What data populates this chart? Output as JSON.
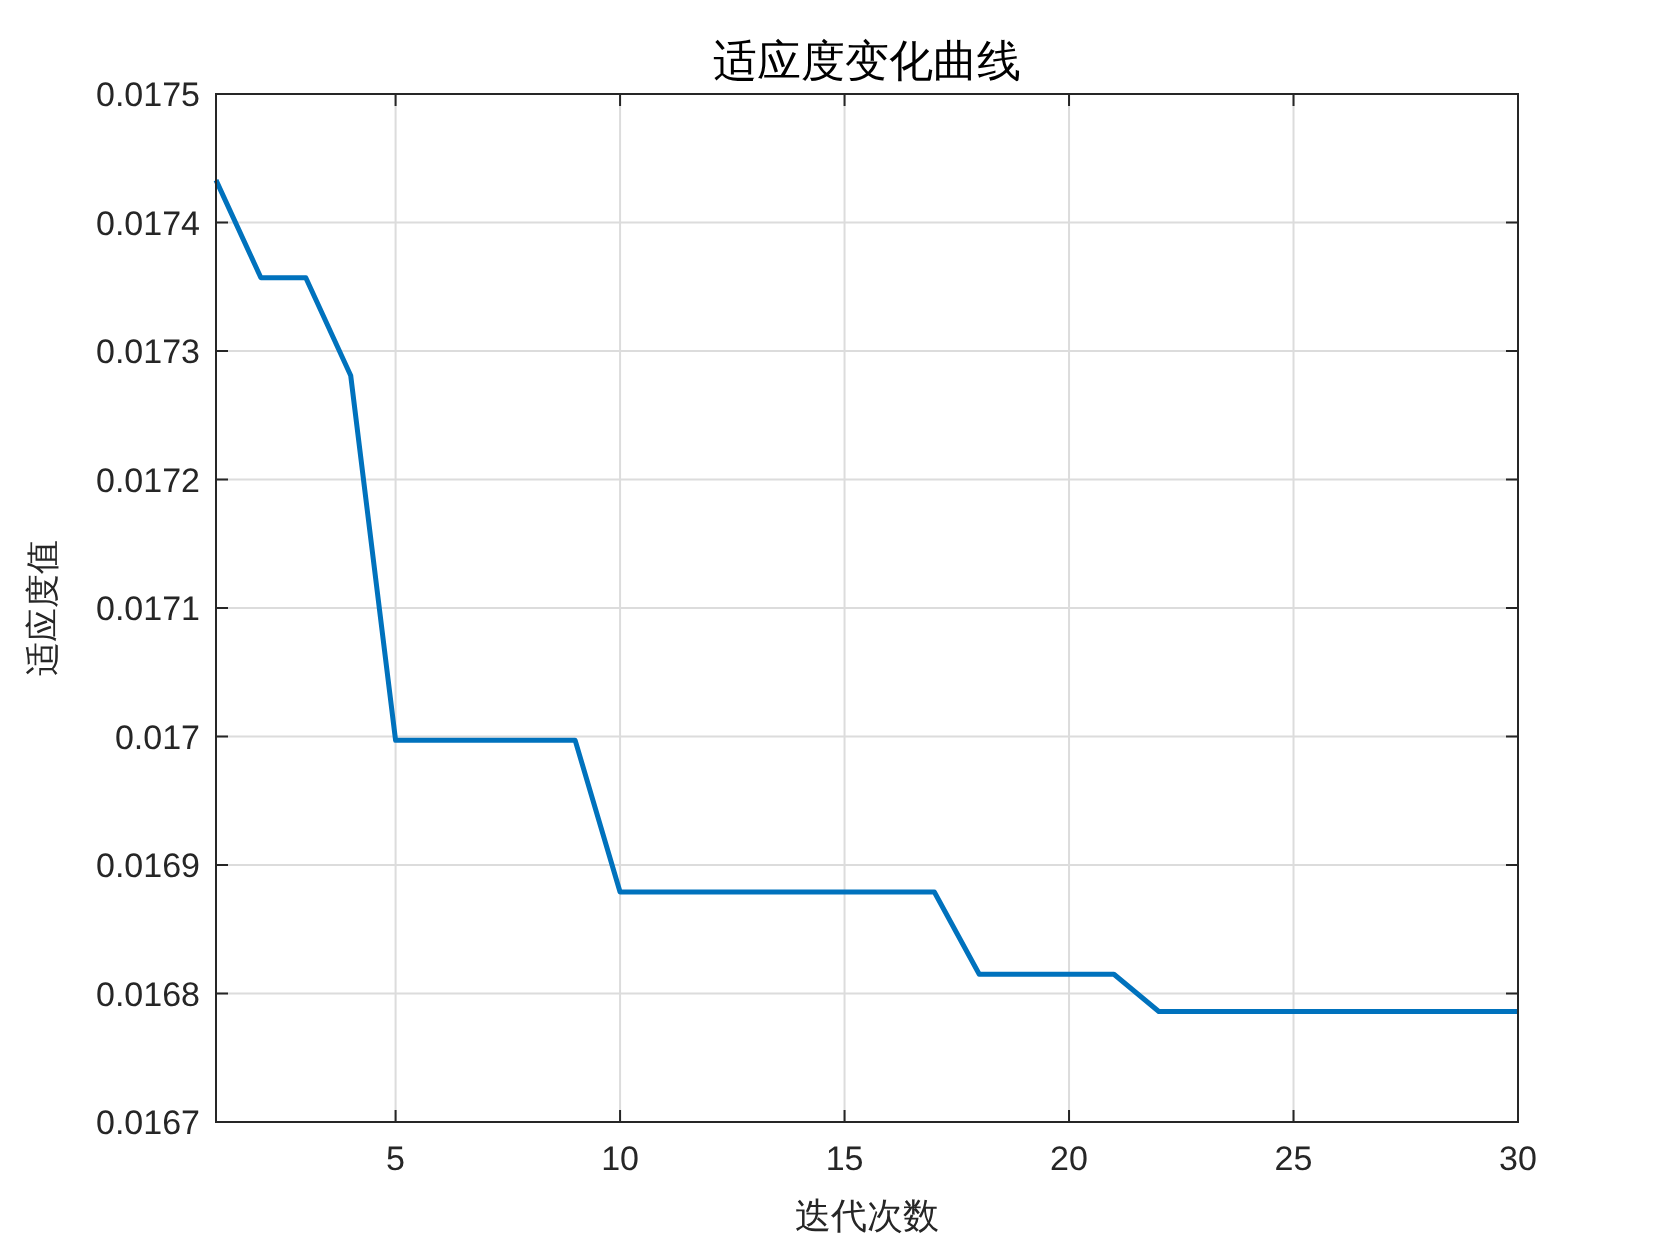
{
  "chart_data": {
    "type": "line",
    "title": "适应度变化曲线",
    "xlabel": "迭代次数",
    "ylabel": "适应度值",
    "x": [
      1,
      2,
      3,
      4,
      5,
      6,
      7,
      8,
      9,
      10,
      11,
      12,
      13,
      14,
      15,
      16,
      17,
      18,
      19,
      20,
      21,
      22,
      23,
      24,
      25,
      26,
      27,
      28,
      29,
      30
    ],
    "series": [
      {
        "color": "#0072bd",
        "values": [
          0.017433,
          0.017357,
          0.017357,
          0.017281,
          0.016997,
          0.016997,
          0.016997,
          0.016997,
          0.016997,
          0.016879,
          0.016879,
          0.016879,
          0.016879,
          0.016879,
          0.016879,
          0.016879,
          0.016879,
          0.016815,
          0.016815,
          0.016815,
          0.016815,
          0.016786,
          0.016786,
          0.016786,
          0.016786,
          0.016786,
          0.016786,
          0.016786,
          0.016786,
          0.016786
        ]
      }
    ],
    "xlim": [
      1,
      30
    ],
    "xticks": [
      5,
      10,
      15,
      20,
      25,
      30
    ],
    "ylim": [
      0.0167,
      0.0175
    ],
    "yticks": [
      0.0167,
      0.0168,
      0.0169,
      0.017,
      0.0171,
      0.0172,
      0.0173,
      0.0174,
      0.0175
    ],
    "grid": true,
    "line_style": "solid",
    "marker": "none"
  }
}
